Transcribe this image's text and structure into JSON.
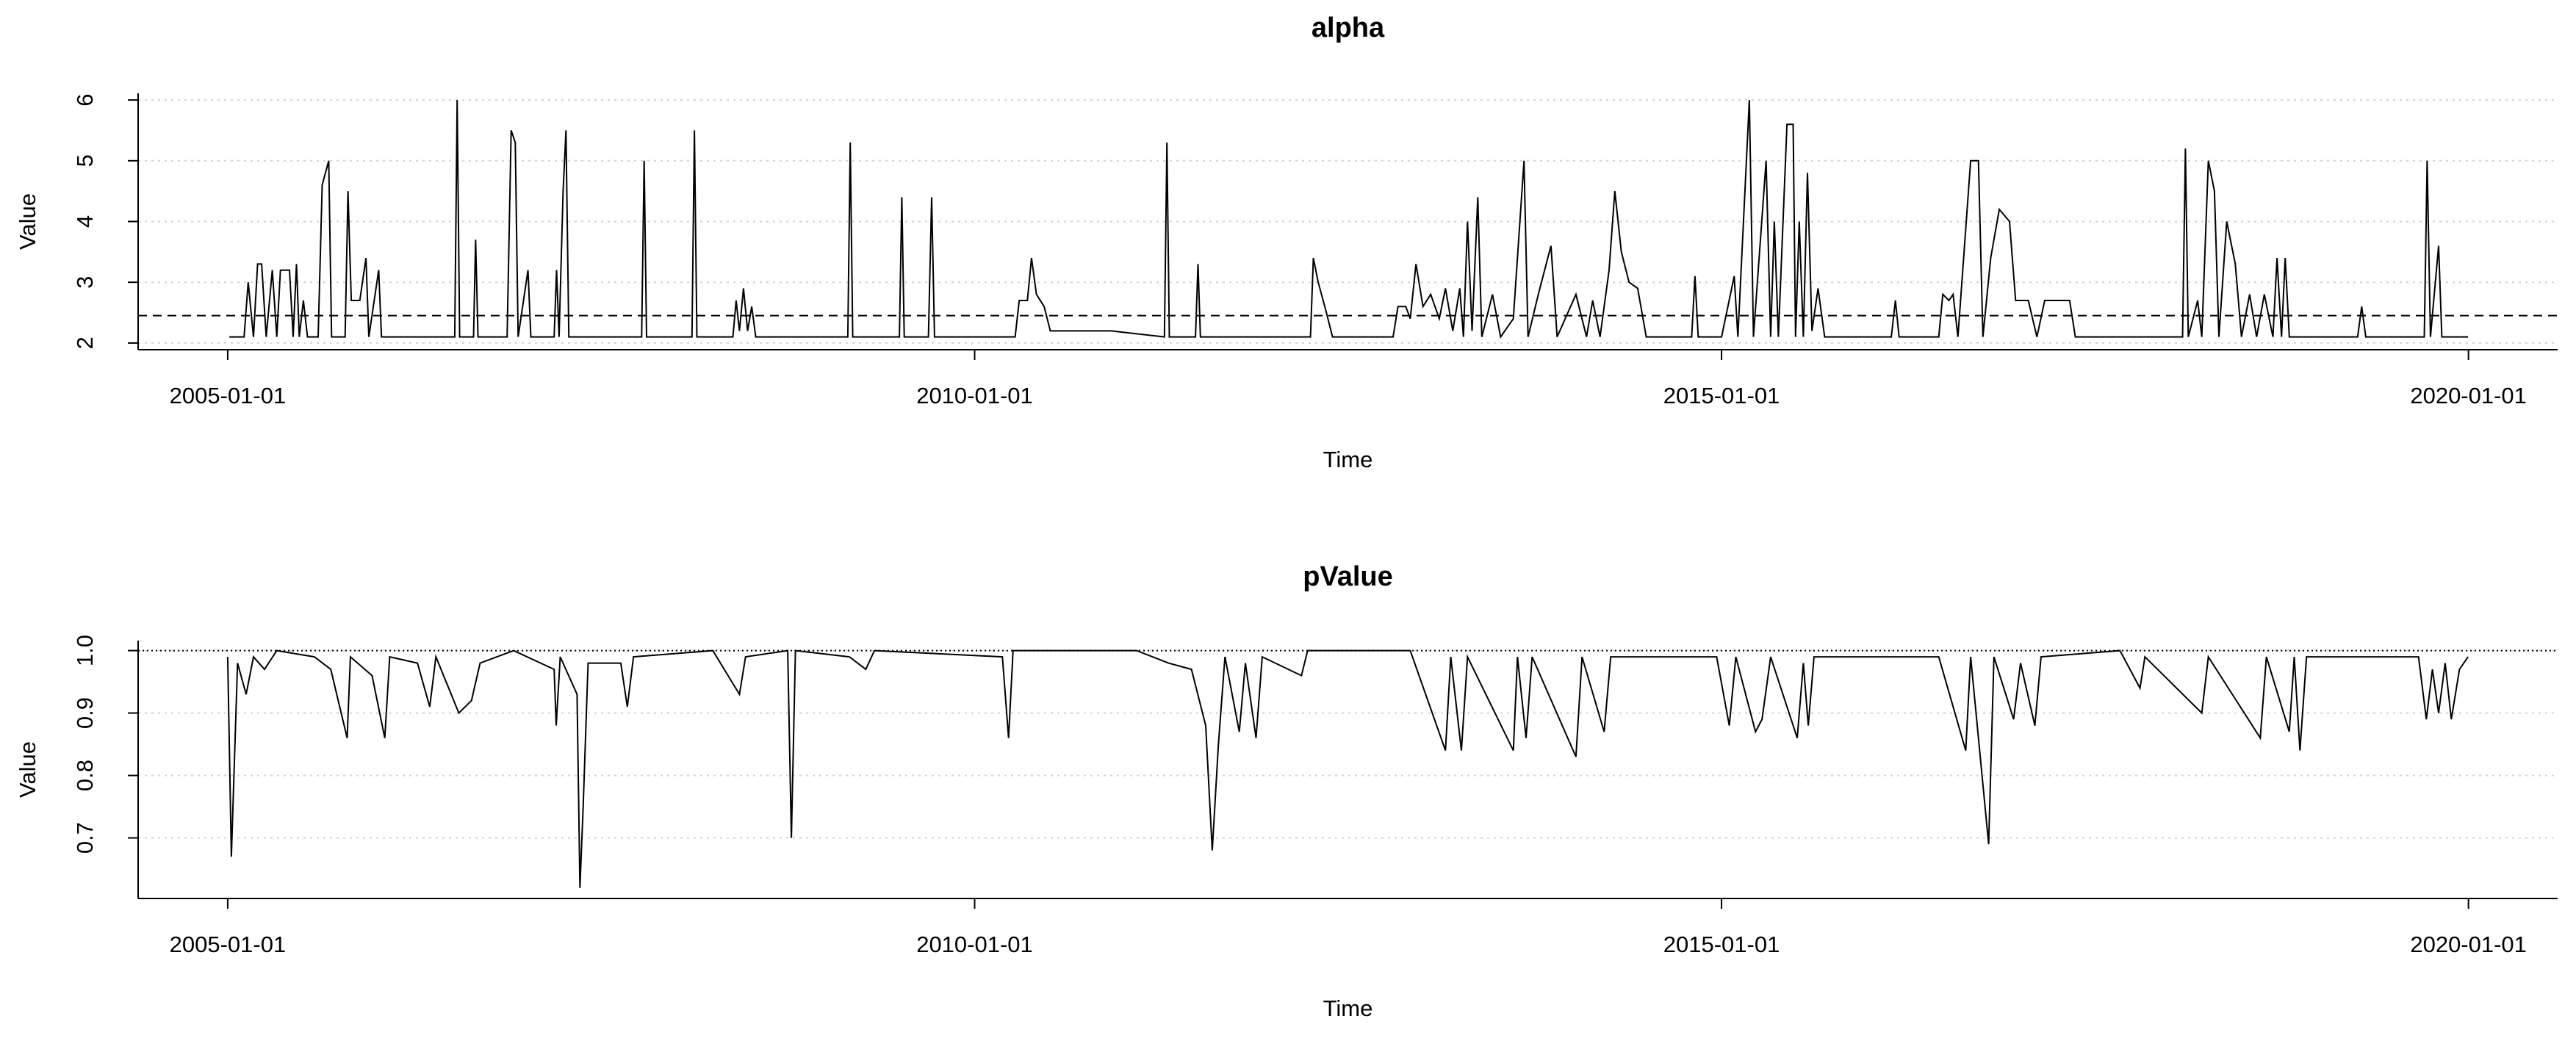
{
  "chart_data": [
    {
      "type": "line",
      "title": "alpha",
      "xlabel": "Time",
      "ylabel": "Value",
      "color": "#000000",
      "grid": "y",
      "grid_color": "#d3d3d3",
      "hline": 2.45,
      "hline_style": "dashed",
      "xlim": [
        "2004-05-27",
        "2020-08-06"
      ],
      "xticks": [
        "2005-01-01",
        "2010-01-01",
        "2015-01-01",
        "2020-01-01"
      ],
      "ylim": [
        1.89,
        6.11
      ],
      "yticks": [
        2,
        3,
        4,
        5,
        6
      ],
      "x": [
        "2005-01-05",
        "2005-02-10",
        "2005-02-20",
        "2005-03-05",
        "2005-03-15",
        "2005-03-25",
        "2005-04-05",
        "2005-04-20",
        "2005-05-01",
        "2005-05-10",
        "2005-06-01",
        "2005-06-10",
        "2005-06-18",
        "2005-06-25",
        "2005-07-05",
        "2005-07-15",
        "2005-08-10",
        "2005-08-20",
        "2005-09-05",
        "2005-09-12",
        "2005-10-15",
        "2005-10-22",
        "2005-10-30",
        "2005-11-20",
        "2005-12-05",
        "2005-12-12",
        "2006-01-05",
        "2006-01-12",
        "2006-03-01",
        "2006-05-01",
        "2006-07-10",
        "2006-07-16",
        "2006-07-22",
        "2006-08-25",
        "2006-08-30",
        "2006-09-05",
        "2006-11-15",
        "2006-11-25",
        "2006-12-05",
        "2006-12-12",
        "2007-01-05",
        "2007-01-12",
        "2007-03-10",
        "2007-03-16",
        "2007-03-22",
        "2007-04-01",
        "2007-04-08",
        "2007-04-15",
        "2007-06-01",
        "2007-10-10",
        "2007-10-16",
        "2007-10-22",
        "2008-02-10",
        "2008-02-16",
        "2008-02-22",
        "2008-05-20",
        "2008-05-28",
        "2008-06-05",
        "2008-06-15",
        "2008-06-25",
        "2008-07-05",
        "2008-07-15",
        "2008-11-01",
        "2009-02-25",
        "2009-03-03",
        "2009-03-09",
        "2009-07-01",
        "2009-07-07",
        "2009-07-13",
        "2009-09-10",
        "2009-09-18",
        "2009-09-25",
        "2010-01-01",
        "2010-04-10",
        "2010-04-20",
        "2010-05-10",
        "2010-05-20",
        "2010-06-01",
        "2010-06-20",
        "2010-07-05",
        "2010-12-01",
        "2011-04-10",
        "2011-04-16",
        "2011-04-22",
        "2011-06-25",
        "2011-07-01",
        "2011-07-07",
        "2012-01-01",
        "2012-04-01",
        "2012-04-08",
        "2012-04-20",
        "2012-05-10",
        "2012-05-25",
        "2012-10-20",
        "2012-11-01",
        "2012-11-20",
        "2012-12-01",
        "2012-12-15",
        "2013-01-01",
        "2013-01-20",
        "2013-02-10",
        "2013-02-25",
        "2013-03-15",
        "2013-04-01",
        "2013-04-10",
        "2013-04-20",
        "2013-05-01",
        "2013-05-15",
        "2013-05-25",
        "2013-06-20",
        "2013-07-10",
        "2013-08-10",
        "2013-09-05",
        "2013-09-15",
        "2013-10-10",
        "2013-11-10",
        "2013-11-25",
        "2014-01-10",
        "2014-02-05",
        "2014-02-20",
        "2014-03-10",
        "2014-04-01",
        "2014-04-15",
        "2014-05-01",
        "2014-05-20",
        "2014-06-10",
        "2014-07-01",
        "2014-10-20",
        "2014-10-28",
        "2014-11-05",
        "2015-01-01",
        "2015-02-01",
        "2015-02-10",
        "2015-03-10",
        "2015-03-20",
        "2015-04-20",
        "2015-05-01",
        "2015-05-10",
        "2015-05-20",
        "2015-06-10",
        "2015-06-25",
        "2015-07-01",
        "2015-07-10",
        "2015-07-20",
        "2015-07-30",
        "2015-08-10",
        "2015-08-25",
        "2015-09-10",
        "2016-02-20",
        "2016-03-01",
        "2016-03-10",
        "2016-06-15",
        "2016-06-25",
        "2016-07-10",
        "2016-07-20",
        "2016-08-01",
        "2016-09-01",
        "2016-09-20",
        "2016-10-01",
        "2016-10-20",
        "2016-11-10",
        "2016-12-05",
        "2016-12-20",
        "2017-01-20",
        "2017-02-10",
        "2017-03-01",
        "2017-05-01",
        "2017-05-15",
        "2017-12-01",
        "2018-02-01",
        "2018-02-08",
        "2018-02-15",
        "2018-03-10",
        "2018-03-20",
        "2018-04-05",
        "2018-04-20",
        "2018-05-01",
        "2018-05-20",
        "2018-06-10",
        "2018-06-25",
        "2018-07-15",
        "2018-08-01",
        "2018-08-20",
        "2018-09-10",
        "2018-09-20",
        "2018-10-01",
        "2018-10-10",
        "2018-10-20",
        "2019-04-05",
        "2019-04-15",
        "2019-04-25",
        "2019-09-15",
        "2019-09-22",
        "2019-09-30",
        "2019-10-20",
        "2019-10-28",
        "2019-12-31"
      ],
      "values": [
        2.1,
        2.1,
        3.0,
        2.1,
        3.3,
        3.3,
        2.1,
        3.2,
        2.1,
        3.2,
        3.2,
        2.1,
        3.3,
        2.1,
        2.7,
        2.1,
        2.1,
        4.6,
        5.0,
        2.1,
        2.1,
        4.5,
        2.7,
        2.7,
        3.4,
        2.1,
        3.2,
        2.1,
        2.1,
        2.1,
        2.1,
        6.0,
        2.1,
        2.1,
        3.7,
        2.1,
        2.1,
        5.5,
        5.3,
        2.1,
        3.2,
        2.1,
        2.1,
        3.2,
        2.1,
        4.5,
        5.5,
        2.1,
        2.1,
        2.1,
        5.0,
        2.1,
        2.1,
        5.5,
        2.1,
        2.1,
        2.7,
        2.2,
        2.9,
        2.2,
        2.6,
        2.1,
        2.1,
        2.1,
        5.3,
        2.1,
        2.1,
        4.4,
        2.1,
        2.1,
        4.4,
        2.1,
        2.1,
        2.1,
        2.7,
        2.7,
        3.4,
        2.8,
        2.6,
        2.2,
        2.2,
        2.1,
        5.3,
        2.1,
        2.1,
        3.3,
        2.1,
        2.1,
        2.1,
        3.4,
        3.0,
        2.5,
        2.1,
        2.1,
        2.6,
        2.6,
        2.4,
        3.3,
        2.6,
        2.8,
        2.4,
        2.9,
        2.2,
        2.9,
        2.1,
        4.0,
        2.2,
        4.4,
        2.1,
        2.8,
        2.1,
        2.4,
        5.0,
        2.1,
        2.8,
        3.6,
        2.1,
        2.8,
        2.1,
        2.7,
        2.1,
        3.2,
        4.5,
        3.5,
        3.0,
        2.9,
        2.1,
        2.1,
        3.1,
        2.1,
        2.1,
        3.1,
        2.1,
        6.0,
        2.1,
        5.0,
        2.1,
        4.0,
        2.1,
        5.6,
        5.6,
        2.1,
        4.0,
        2.1,
        4.8,
        2.2,
        2.9,
        2.1,
        2.1,
        2.7,
        2.1,
        2.1,
        2.8,
        2.7,
        2.8,
        2.1,
        5.0,
        5.0,
        2.1,
        3.4,
        4.2,
        4.0,
        2.7,
        2.7,
        2.1,
        2.7,
        2.7,
        2.1,
        2.1,
        2.1,
        5.2,
        2.1,
        2.7,
        2.1,
        5.0,
        4.5,
        2.1,
        4.0,
        3.3,
        2.1,
        2.8,
        2.1,
        2.8,
        2.1,
        3.4,
        2.1,
        3.4,
        2.1,
        2.1,
        2.6,
        2.1,
        2.1,
        5.0,
        2.1,
        3.6,
        2.1,
        2.1
      ]
    },
    {
      "type": "line",
      "title": "pValue",
      "xlabel": "Time",
      "ylabel": "Value",
      "color": "#000000",
      "grid": "y",
      "grid_color": "#d3d3d3",
      "hline": 1,
      "hline_style": "dotted",
      "xlim": [
        "2004-05-27",
        "2020-08-06"
      ],
      "xticks": [
        "2005-01-01",
        "2010-01-01",
        "2015-01-01",
        "2020-01-01"
      ],
      "ylim": [
        0.603,
        1.016
      ],
      "yticks": [
        0.7,
        0.8,
        0.9,
        {
          "value": 1,
          "label": "1.0"
        }
      ],
      "x": [
        "2005-01-01",
        "2005-01-10",
        "2005-01-25",
        "2005-02-15",
        "2005-03-05",
        "2005-04-01",
        "2005-05-01",
        "2005-08-01",
        "2005-09-10",
        "2005-10-20",
        "2005-10-28",
        "2005-12-20",
        "2006-01-20",
        "2006-02-01",
        "2006-04-10",
        "2006-05-10",
        "2006-05-25",
        "2006-07-20",
        "2006-08-20",
        "2006-09-10",
        "2006-12-01",
        "2007-03-10",
        "2007-03-15",
        "2007-03-25",
        "2007-05-05",
        "2007-05-12",
        "2007-05-20",
        "2007-06-01",
        "2007-08-20",
        "2007-09-05",
        "2007-09-20",
        "2008-04-01",
        "2008-06-05",
        "2008-06-20",
        "2008-10-01",
        "2008-10-10",
        "2008-10-20",
        "2009-03-01",
        "2009-04-10",
        "2009-05-01",
        "2010-03-10",
        "2010-03-25",
        "2010-04-05",
        "2011-02-01",
        "2011-04-20",
        "2011-06-15",
        "2011-07-20",
        "2011-08-05",
        "2011-08-20",
        "2011-09-05",
        "2011-10-10",
        "2011-10-25",
        "2011-11-20",
        "2011-12-05",
        "2012-03-10",
        "2012-03-25",
        "2012-12-01",
        "2013-02-25",
        "2013-03-10",
        "2013-04-05",
        "2013-04-20",
        "2013-08-10",
        "2013-08-20",
        "2013-09-10",
        "2013-09-25",
        "2014-01-10",
        "2014-01-25",
        "2014-03-20",
        "2014-04-05",
        "2014-12-20",
        "2015-01-20",
        "2015-02-05",
        "2015-03-25",
        "2015-04-10",
        "2015-05-01",
        "2015-07-05",
        "2015-07-20",
        "2015-08-01",
        "2015-08-15",
        "2016-06-15",
        "2016-08-20",
        "2016-09-01",
        "2016-10-15",
        "2016-10-28",
        "2016-12-15",
        "2017-01-01",
        "2017-02-05",
        "2017-02-20",
        "2017-09-01",
        "2017-10-20",
        "2017-11-01",
        "2018-03-20",
        "2018-04-05",
        "2018-08-10",
        "2018-08-25",
        "2018-10-20",
        "2018-11-01",
        "2018-11-15",
        "2018-12-01",
        "2019-09-01",
        "2019-09-20",
        "2019-10-05",
        "2019-10-20",
        "2019-11-05",
        "2019-11-20",
        "2019-12-10",
        "2019-12-31"
      ],
      "values": [
        0.99,
        0.67,
        0.98,
        0.93,
        0.99,
        0.97,
        1.0,
        0.99,
        0.97,
        0.86,
        0.99,
        0.96,
        0.86,
        0.99,
        0.98,
        0.91,
        0.99,
        0.9,
        0.92,
        0.98,
        1.0,
        0.97,
        0.88,
        0.99,
        0.93,
        0.62,
        0.75,
        0.98,
        0.98,
        0.91,
        0.99,
        1.0,
        0.93,
        0.99,
        1.0,
        0.7,
        1.0,
        0.99,
        0.97,
        1.0,
        0.99,
        0.86,
        1.0,
        1.0,
        0.98,
        0.97,
        0.88,
        0.68,
        0.85,
        0.99,
        0.87,
        0.98,
        0.86,
        0.99,
        0.96,
        1.0,
        1.0,
        0.84,
        0.99,
        0.84,
        0.99,
        0.84,
        0.99,
        0.86,
        0.99,
        0.83,
        0.99,
        0.87,
        0.99,
        0.99,
        0.88,
        0.99,
        0.87,
        0.89,
        0.99,
        0.86,
        0.98,
        0.88,
        0.99,
        0.99,
        0.84,
        0.99,
        0.69,
        0.99,
        0.89,
        0.98,
        0.88,
        0.99,
        1.0,
        0.94,
        0.99,
        0.9,
        0.99,
        0.86,
        0.99,
        0.87,
        0.99,
        0.84,
        0.99,
        0.99,
        0.89,
        0.97,
        0.9,
        0.98,
        0.89,
        0.97,
        0.99
      ]
    }
  ]
}
